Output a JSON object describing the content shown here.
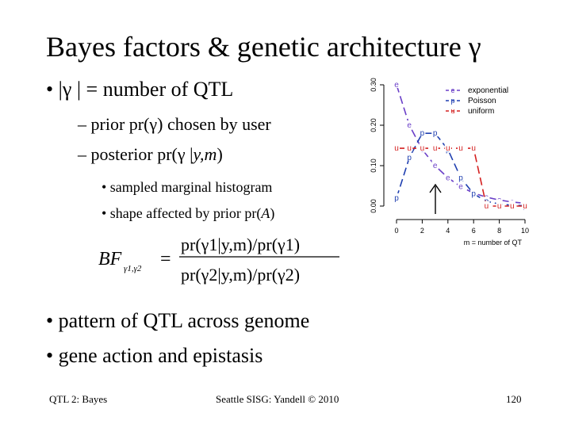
{
  "slide": {
    "title_text": "Bayes factors & genetic architecture ",
    "title_gamma": "γ",
    "bullet1": {
      "marker": "•",
      "text_a": "|",
      "gamma": "γ",
      "text_b": "| = number of QTL"
    },
    "sub1": {
      "prefix": "– prior pr(",
      "gamma": "γ",
      "suffix": ") chosen by user"
    },
    "sub2": {
      "prefix": "– posterior pr(",
      "gamma": "γ",
      "mid": "|",
      "ym": "y,m",
      "suffix": ")"
    },
    "subsub1": "• sampled marginal histogram",
    "subsub2_a": "• shape affected by prior pr(",
    "subsub2_A": "A",
    "subsub2_b": ")",
    "bullet2": "• pattern of QTL across genome",
    "bullet3": "• gene action and epistasis"
  },
  "formula": {
    "lhs": "BF",
    "lhs_sub": "γ1,γ2",
    "equals": "=",
    "numerator": "pr(γ1|y,m)/pr(γ1)",
    "denominator": "pr(γ2|y,m)/pr(γ2)"
  },
  "footer": {
    "left": "QTL 2: Bayes",
    "center": "Seattle SISG: Yandell © 2010",
    "right": "120"
  },
  "chart_data": {
    "type": "line",
    "xlabel": "m = number of QT",
    "ylim": [
      0,
      0.3
    ],
    "xlim": [
      0,
      10
    ],
    "x_ticks": [
      "0",
      "2",
      "4",
      "6",
      "8",
      "10"
    ],
    "y_ticks": [
      "0.00",
      "0.10",
      "0.20",
      "0.30"
    ],
    "legend_position": "top-right",
    "legend": [
      {
        "symbol": "e",
        "label": "exponential",
        "color": "#6a3fc8"
      },
      {
        "symbol": "p",
        "label": "Poisson",
        "color": "#1f3fb0"
      },
      {
        "symbol": "u",
        "label": "uniform",
        "color": "#d42020"
      }
    ],
    "series": [
      {
        "name": "exponential",
        "symbol": "e",
        "color": "#6a3fc8",
        "x": [
          0,
          1,
          2,
          3,
          4,
          5,
          6,
          7,
          8,
          9,
          10
        ],
        "values": [
          0.3,
          0.2,
          0.14,
          0.1,
          0.07,
          0.048,
          0.032,
          0.022,
          0.015,
          0.01,
          0.007
        ]
      },
      {
        "name": "Poisson",
        "symbol": "p",
        "color": "#1f3fb0",
        "x": [
          0,
          1,
          2,
          3,
          4,
          5,
          6,
          7,
          8,
          9,
          10
        ],
        "values": [
          0.02,
          0.12,
          0.18,
          0.18,
          0.14,
          0.07,
          0.03,
          0.012,
          0.005,
          0.002,
          0.001
        ]
      },
      {
        "name": "uniform",
        "symbol": "u",
        "color": "#d42020",
        "x": [
          0,
          1,
          2,
          3,
          4,
          5,
          6,
          7,
          8,
          9,
          10
        ],
        "values": [
          0.143,
          0.143,
          0.143,
          0.143,
          0.143,
          0.143,
          0.143,
          0.0,
          0.0,
          0.0,
          0.0
        ]
      }
    ]
  }
}
